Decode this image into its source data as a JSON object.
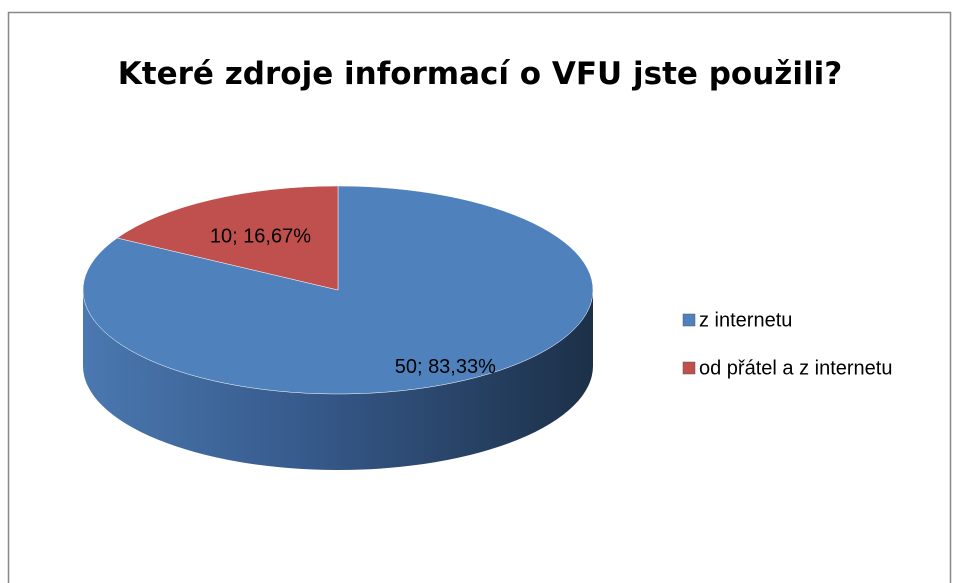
{
  "chart_data": {
    "type": "pie3d",
    "title": "Které zdroje informací o VFU jste použili?",
    "categories": [
      "z internetu",
      "od přátel a z internetu"
    ],
    "values": [
      50,
      10
    ],
    "value_labels": [
      "50; 83,33%",
      "10; 16,67%"
    ],
    "colors": [
      "#4f81bd",
      "#c0504d"
    ],
    "legend": "right"
  }
}
